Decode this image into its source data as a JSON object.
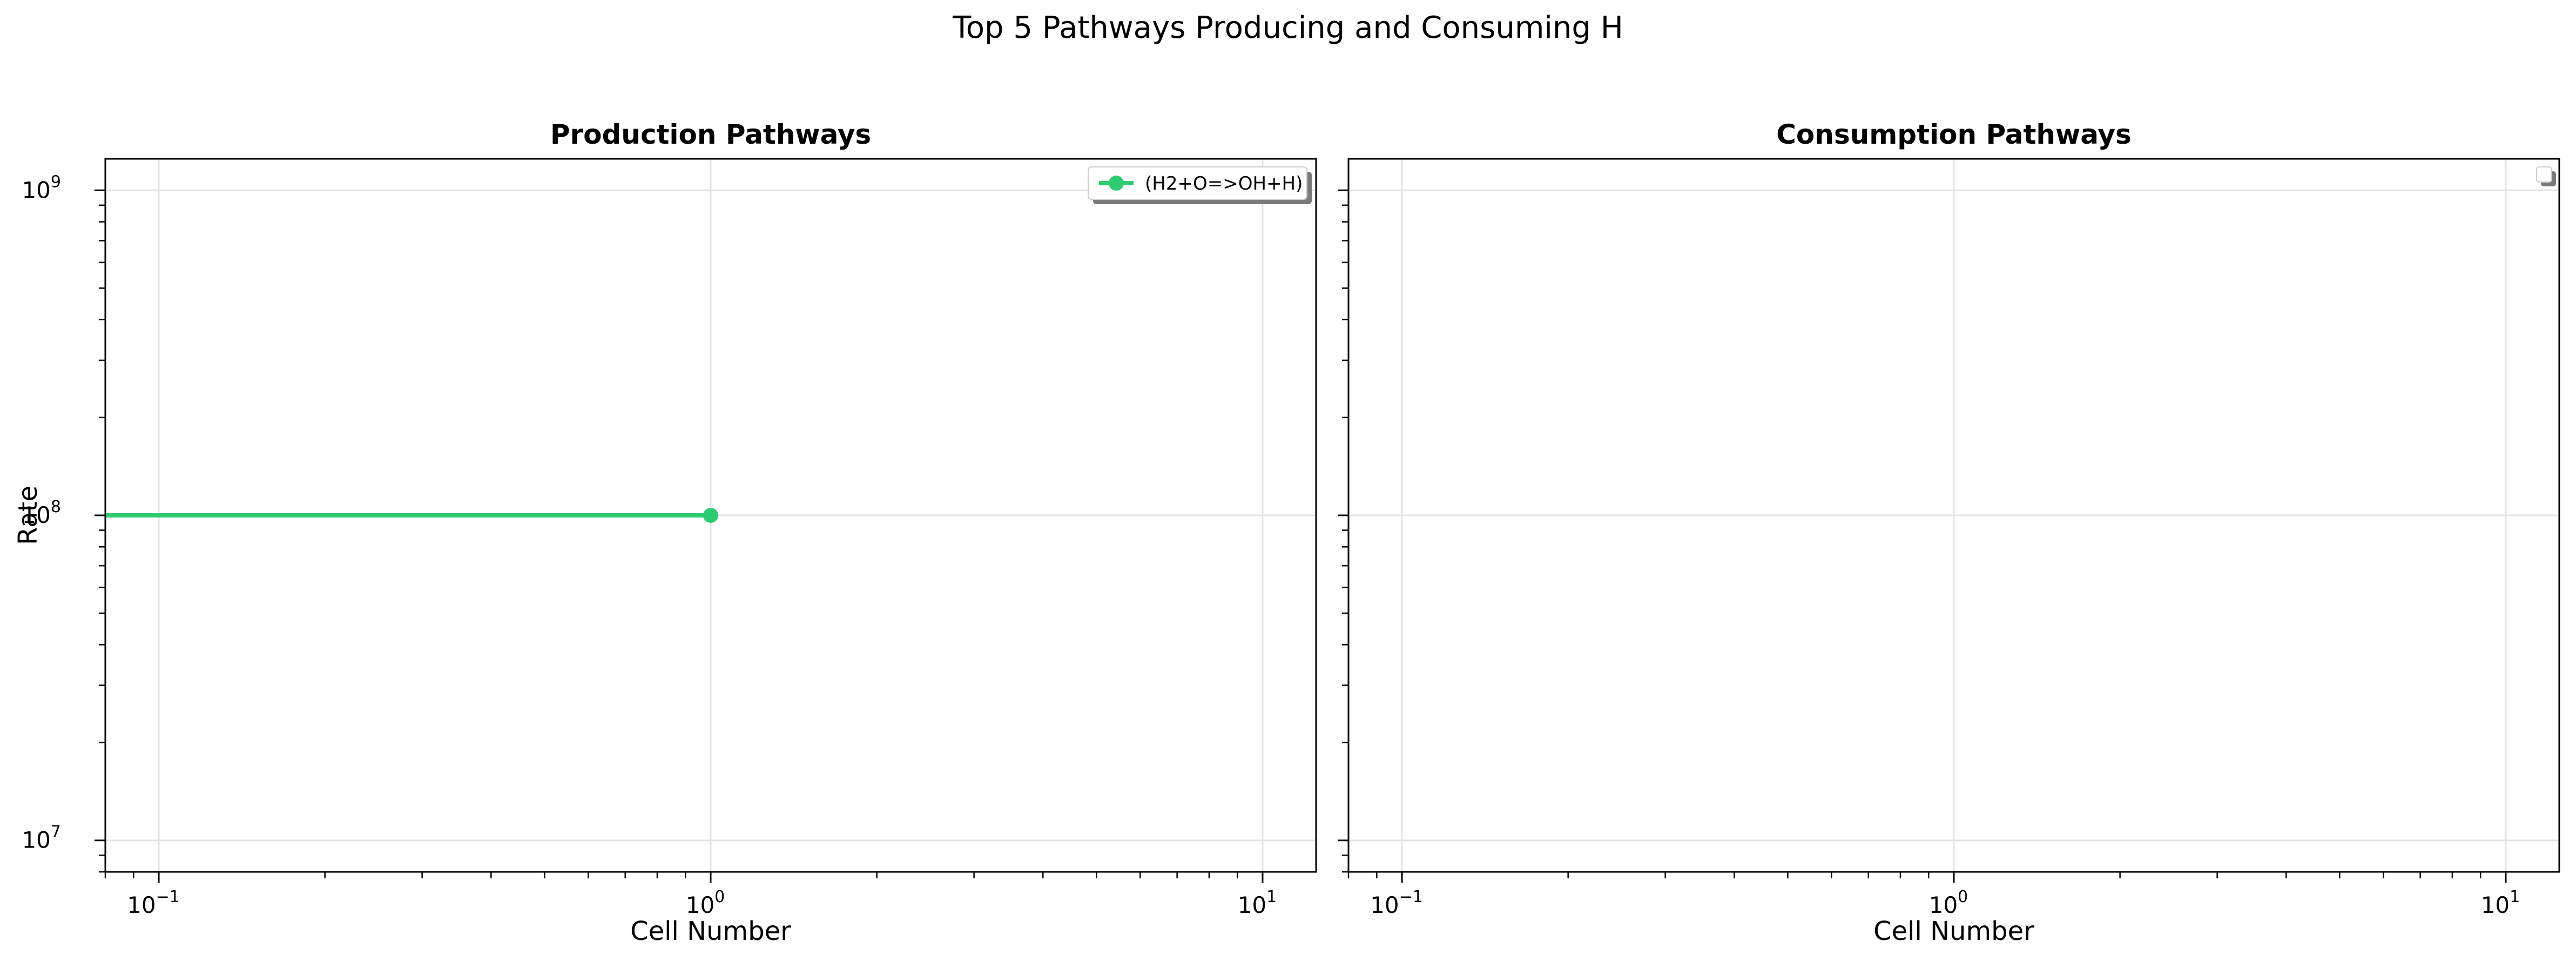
{
  "figure": {
    "title": "Top 5 Pathways Producing and Consuming H",
    "background": "#ffffff"
  },
  "chart_data": [
    {
      "type": "line",
      "title": "Production Pathways",
      "xlabel": "Cell Number",
      "ylabel": "Rate",
      "xscale": "log",
      "yscale": "log",
      "xlim": [
        0.08,
        12.5
      ],
      "ylim": [
        8000000,
        1250000000
      ],
      "xticks": [
        {
          "base": "10",
          "exp": "−1",
          "value": 0.1
        },
        {
          "base": "10",
          "exp": "0",
          "value": 1
        },
        {
          "base": "10",
          "exp": "1",
          "value": 10
        }
      ],
      "yticks": [
        {
          "base": "10",
          "exp": "7",
          "value": 10000000
        },
        {
          "base": "10",
          "exp": "8",
          "value": 100000000
        },
        {
          "base": "10",
          "exp": "9",
          "value": 1000000000
        }
      ],
      "grid": true,
      "legend_position": "top-right",
      "series": [
        {
          "name": "(H2+O=>OH+H)",
          "color": "#2ecc71",
          "marker": "circle",
          "x": [
            0,
            1
          ],
          "y": [
            100000000,
            100000000
          ]
        }
      ]
    },
    {
      "type": "line",
      "title": "Consumption Pathways",
      "xlabel": "Cell Number",
      "ylabel": "",
      "xscale": "log",
      "yscale": "log",
      "xlim": [
        0.08,
        12.5
      ],
      "ylim": [
        8000000,
        1250000000
      ],
      "xticks": [
        {
          "base": "10",
          "exp": "−1",
          "value": 0.1
        },
        {
          "base": "10",
          "exp": "0",
          "value": 1
        },
        {
          "base": "10",
          "exp": "1",
          "value": 10
        }
      ],
      "yticks": [
        {
          "base": "10",
          "exp": "7",
          "value": 10000000
        },
        {
          "base": "10",
          "exp": "8",
          "value": 100000000
        },
        {
          "base": "10",
          "exp": "9",
          "value": 1000000000
        }
      ],
      "grid": true,
      "legend_position": "top-right",
      "series": []
    }
  ]
}
